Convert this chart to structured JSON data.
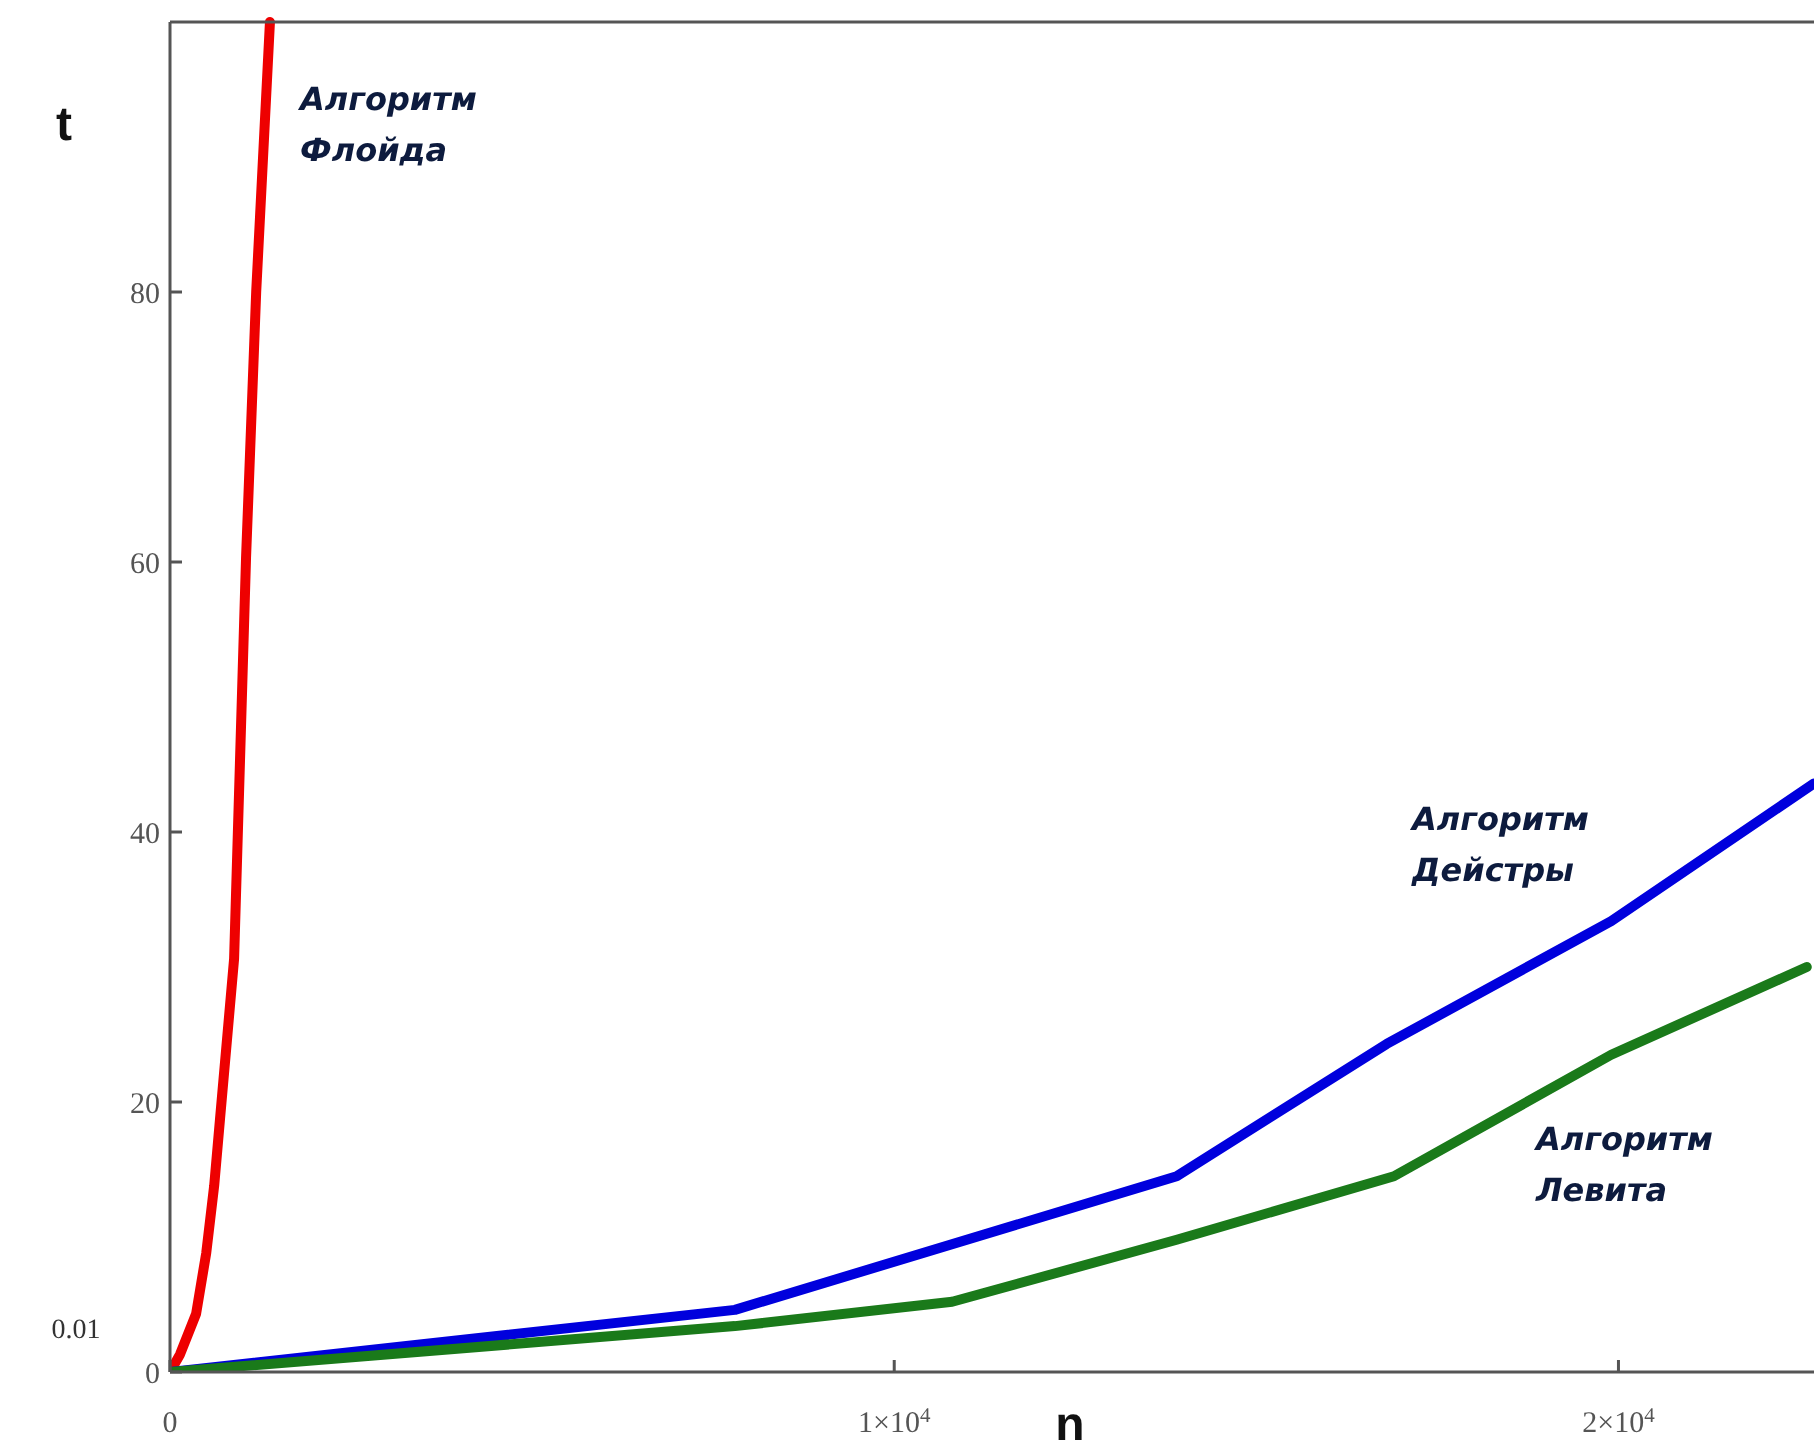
{
  "chart_data": {
    "type": "line",
    "xlabel": "n",
    "ylabel": "t",
    "xlim": [
      0,
      22700
    ],
    "ylim": [
      0,
      100
    ],
    "xticks": [
      0,
      {
        "value": 10000,
        "label": "1×10$^{4}$"
      },
      {
        "value": 20000,
        "label": "2×10$^{4}$"
      }
    ],
    "yticks": [
      0,
      20,
      40,
      60,
      80
    ],
    "grid": false,
    "marker": "none",
    "line_style": "solid",
    "annotations": [
      "0.01"
    ],
    "series": [
      {
        "name": "Алгоритм Флойда",
        "color": "#ee0000",
        "x": [
          0,
          138,
          360,
          500,
          610,
          690,
          885,
          1050,
          1190,
          1380
        ],
        "values": [
          0,
          1.3,
          4.3,
          8.8,
          13.8,
          18.7,
          30.6,
          60.3,
          80,
          100
        ]
      },
      {
        "name": "Алгоритм Дейстры",
        "color": "#0000dd",
        "x": [
          0,
          7800,
          13900,
          16800,
          19900,
          22700
        ],
        "values": [
          0,
          4.6,
          14.5,
          24.3,
          33.4,
          43.6
        ]
      },
      {
        "name": "Алгоритм Левита",
        "color": "#1a7a1a",
        "x": [
          0,
          7800,
          10800,
          13900,
          16900,
          19900,
          22600
        ],
        "values": [
          0,
          3.4,
          5.2,
          9.8,
          14.5,
          23.5,
          30
        ]
      }
    ]
  }
}
